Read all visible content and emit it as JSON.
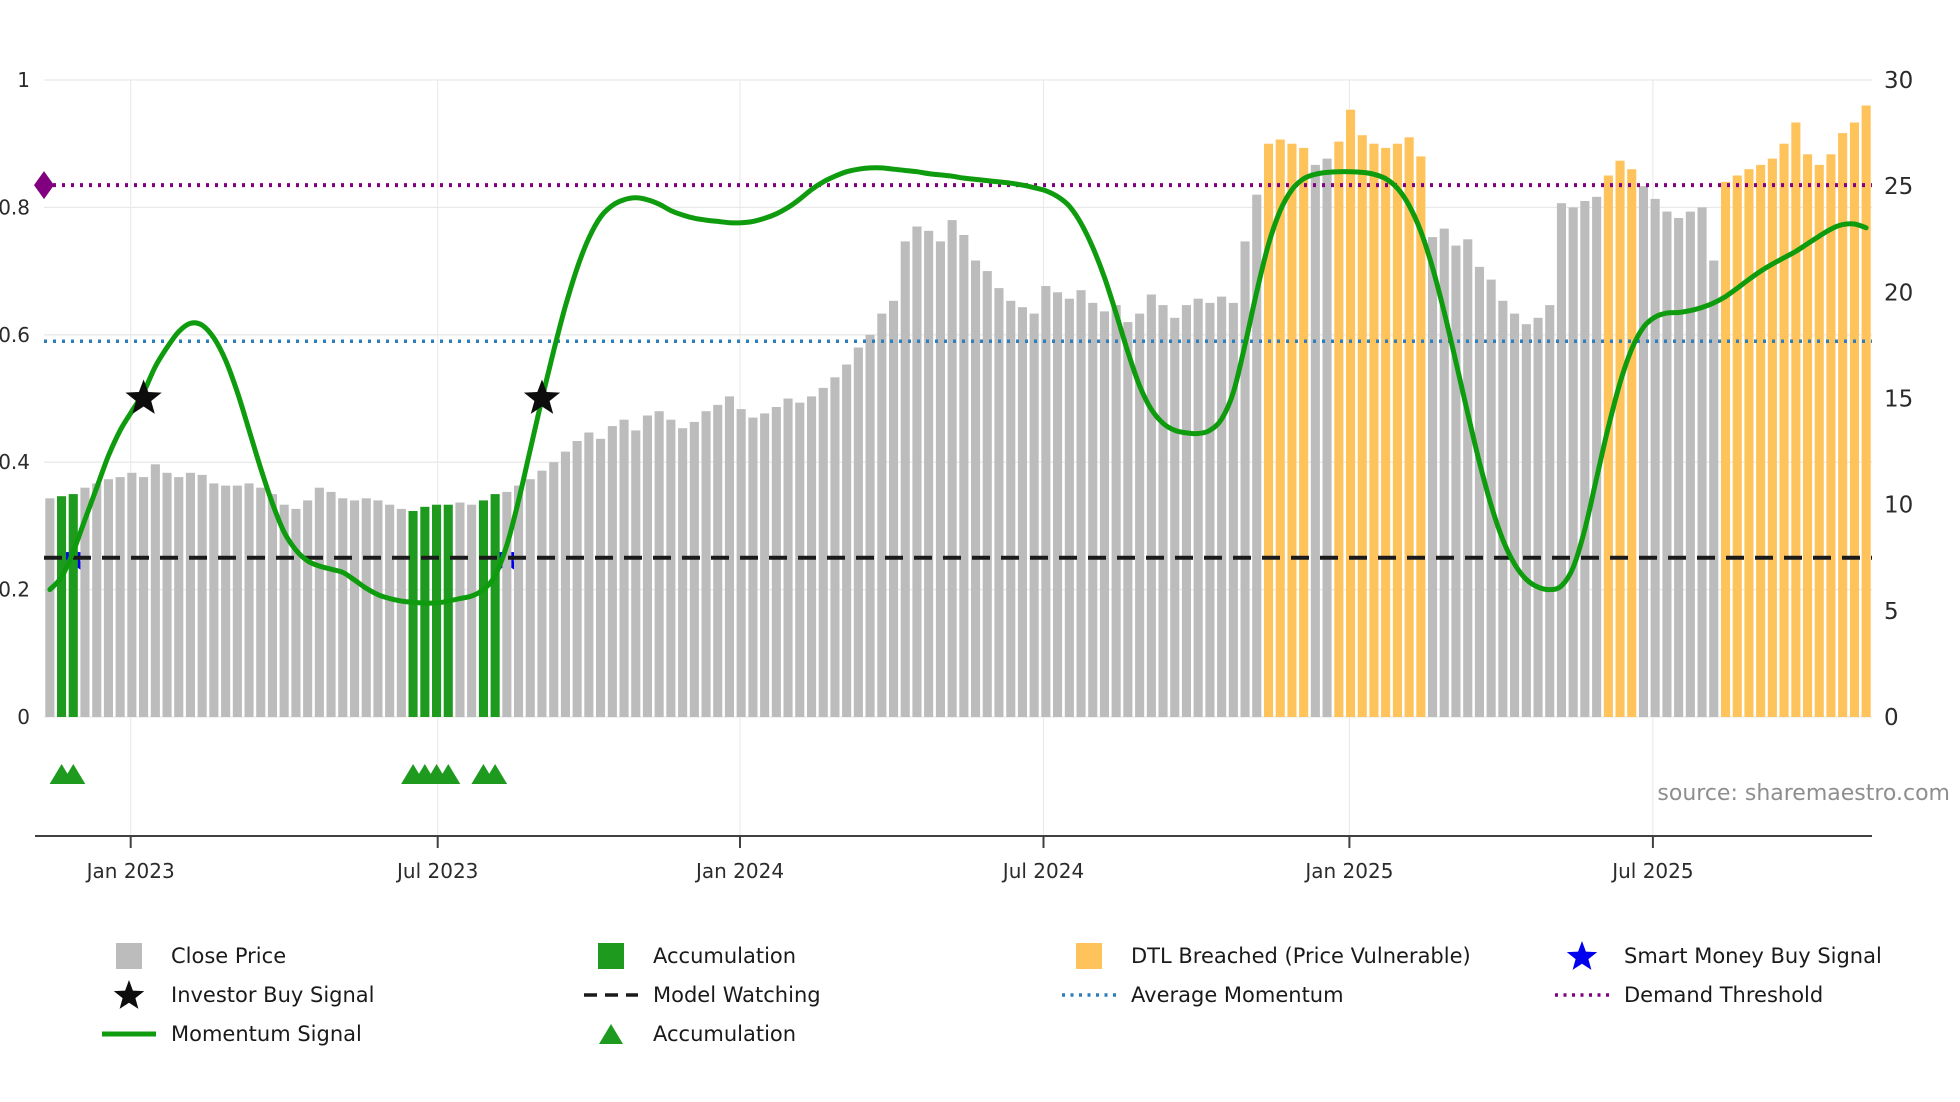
{
  "source_text": "source: sharemaestro.com",
  "colors": {
    "close": "#bcbcbc",
    "accum": "#1e9b1e",
    "dtl": "#ffc35c",
    "momentum": "#0e9c0e",
    "avg_momentum": "#2e7ebc",
    "demand": "#800080",
    "model_watching": "#1a1a1a",
    "investor_star": "#0d0d0d",
    "smart_star": "#0000ee",
    "grid": "#e9e9e9",
    "axis_text": "#2b2b2b",
    "spine": "#404040",
    "source": "#8e8e8e"
  },
  "chart_data": {
    "type": "bar+line",
    "title": "",
    "xlabel": "",
    "ylabel_left": "",
    "ylabel_right": "",
    "left_axis": {
      "max": 1,
      "ticks": [
        {
          "label": "0",
          "value": 0
        },
        {
          "label": "0.2",
          "value": 0.2
        },
        {
          "label": "0.4",
          "value": 0.4
        },
        {
          "label": "0.6",
          "value": 0.6
        },
        {
          "label": "0.8",
          "value": 0.8
        },
        {
          "label": "1",
          "value": 1
        }
      ]
    },
    "right_axis": {
      "max": 30,
      "ticks": [
        {
          "label": "0",
          "value": 0
        },
        {
          "label": "5",
          "value": 5
        },
        {
          "label": "10",
          "value": 10
        },
        {
          "label": "15",
          "value": 15
        },
        {
          "label": "20",
          "value": 20
        },
        {
          "label": "25",
          "value": 25
        },
        {
          "label": "30",
          "value": 30
        }
      ]
    },
    "x_ticks": [
      {
        "label": "Jan 2023",
        "pos": 6.9
      },
      {
        "label": "Jul 2023",
        "pos": 33.1
      },
      {
        "label": "Jan 2024",
        "pos": 58.9
      },
      {
        "label": "Jul 2024",
        "pos": 84.8
      },
      {
        "label": "Jan 2025",
        "pos": 110.9
      },
      {
        "label": "Jul 2025",
        "pos": 136.8
      }
    ],
    "bars": {
      "name": "Close Price (weekly, right axis)",
      "values": [
        10.3,
        10.4,
        10.5,
        10.8,
        11.0,
        11.2,
        11.3,
        11.5,
        11.3,
        11.9,
        11.5,
        11.3,
        11.5,
        11.4,
        11.0,
        10.9,
        10.9,
        11.0,
        10.8,
        10.5,
        10.0,
        9.8,
        10.2,
        10.8,
        10.6,
        10.3,
        10.2,
        10.3,
        10.2,
        10.0,
        9.8,
        9.7,
        9.9,
        10.0,
        10.0,
        10.1,
        10.0,
        10.2,
        10.5,
        10.6,
        10.9,
        11.2,
        11.6,
        12.0,
        12.5,
        13.0,
        13.4,
        13.1,
        13.7,
        14.0,
        13.5,
        14.2,
        14.4,
        14.0,
        13.6,
        13.9,
        14.4,
        14.7,
        15.1,
        14.5,
        14.1,
        14.3,
        14.6,
        15.0,
        14.8,
        15.1,
        15.5,
        16.0,
        16.6,
        17.4,
        18.0,
        19.0,
        19.6,
        22.4,
        23.1,
        22.9,
        22.4,
        23.4,
        22.7,
        21.5,
        21.0,
        20.2,
        19.6,
        19.3,
        19.0,
        20.3,
        20.0,
        19.7,
        20.1,
        19.5,
        19.1,
        19.4,
        18.6,
        19.0,
        19.9,
        19.4,
        18.8,
        19.4,
        19.7,
        19.5,
        19.8,
        19.5,
        22.4,
        24.6,
        27.0,
        27.2,
        27.0,
        26.8,
        26.0,
        26.3,
        27.1,
        28.6,
        27.4,
        27.0,
        26.8,
        27.0,
        27.3,
        26.4,
        22.6,
        23.0,
        22.2,
        22.5,
        21.2,
        20.6,
        19.6,
        19.0,
        18.5,
        18.8,
        19.4,
        24.2,
        24.0,
        24.3,
        24.5,
        25.5,
        26.2,
        25.8,
        25.0,
        24.4,
        23.8,
        23.5,
        23.8,
        24.0,
        21.5,
        25.2,
        25.5,
        25.8,
        26.0,
        26.3,
        27.0,
        28.0,
        26.5,
        26.0,
        26.5,
        27.5,
        28.0,
        28.8
      ],
      "color_runs": [
        [
          "g",
          1
        ],
        [
          "a",
          2
        ],
        [
          "g",
          28
        ],
        [
          "a",
          4
        ],
        [
          "g",
          2
        ],
        [
          "a",
          2
        ],
        [
          "g",
          65
        ],
        [
          "d",
          4
        ],
        [
          "g",
          2
        ],
        [
          "d",
          8
        ],
        [
          "g",
          15
        ],
        [
          "d",
          3
        ],
        [
          "g",
          7
        ],
        [
          "d",
          13
        ]
      ],
      "color_legend": {
        "g": "Close Price",
        "a": "Accumulation",
        "d": "DTL Breached (Price Vulnerable)"
      }
    },
    "momentum_signal": {
      "name": "Momentum Signal (left axis)",
      "values": [
        0.2,
        0.22,
        0.26,
        0.31,
        0.36,
        0.41,
        0.45,
        0.48,
        0.51,
        0.55,
        0.58,
        0.605,
        0.618,
        0.615,
        0.595,
        0.56,
        0.51,
        0.45,
        0.39,
        0.335,
        0.29,
        0.262,
        0.245,
        0.237,
        0.232,
        0.227,
        0.215,
        0.202,
        0.192,
        0.186,
        0.182,
        0.18,
        0.179,
        0.179,
        0.182,
        0.186,
        0.19,
        0.2,
        0.222,
        0.27,
        0.34,
        0.42,
        0.5,
        0.575,
        0.645,
        0.705,
        0.752,
        0.785,
        0.803,
        0.812,
        0.815,
        0.812,
        0.805,
        0.795,
        0.788,
        0.783,
        0.78,
        0.778,
        0.776,
        0.776,
        0.778,
        0.783,
        0.79,
        0.8,
        0.813,
        0.828,
        0.84,
        0.849,
        0.856,
        0.86,
        0.862,
        0.862,
        0.86,
        0.858,
        0.856,
        0.853,
        0.851,
        0.849,
        0.846,
        0.844,
        0.842,
        0.84,
        0.838,
        0.835,
        0.831,
        0.826,
        0.817,
        0.802,
        0.775,
        0.737,
        0.69,
        0.633,
        0.573,
        0.52,
        0.483,
        0.461,
        0.45,
        0.446,
        0.445,
        0.45,
        0.468,
        0.51,
        0.585,
        0.668,
        0.742,
        0.795,
        0.828,
        0.845,
        0.852,
        0.855,
        0.856,
        0.856,
        0.855,
        0.852,
        0.845,
        0.83,
        0.803,
        0.762,
        0.705,
        0.635,
        0.557,
        0.477,
        0.4,
        0.332,
        0.278,
        0.24,
        0.216,
        0.204,
        0.2,
        0.206,
        0.235,
        0.295,
        0.375,
        0.455,
        0.525,
        0.578,
        0.612,
        0.628,
        0.634,
        0.635,
        0.638,
        0.643,
        0.65,
        0.66,
        0.673,
        0.687,
        0.7,
        0.711,
        0.721,
        0.731,
        0.743,
        0.755,
        0.766,
        0.773,
        0.774,
        0.768
      ]
    },
    "reference_lines": {
      "demand_threshold": 0.835,
      "average_momentum": 0.59,
      "model_watching": 0.25
    },
    "markers": {
      "investor_buy_signals": [
        {
          "index": 8,
          "value": 0.5
        },
        {
          "index": 42,
          "value": 0.5
        }
      ],
      "smart_money_buy_signals": [
        {
          "index": 2,
          "value": 0.25
        },
        {
          "index": 39,
          "value": 0.25
        }
      ],
      "accumulation_marker_indices": [
        1,
        2,
        31,
        32,
        33,
        34,
        37,
        38
      ],
      "demand_threshold_marker": {
        "value": 0.835
      }
    }
  },
  "legend": {
    "columns": [
      {
        "items": [
          {
            "type": "square",
            "color": "close",
            "label": "Close Price"
          },
          {
            "type": "star",
            "color": "investor_star",
            "label": "Investor Buy Signal"
          },
          {
            "type": "line",
            "color": "momentum",
            "label": "Momentum Signal"
          }
        ]
      },
      {
        "items": [
          {
            "type": "square",
            "color": "accum",
            "label": "Accumulation"
          },
          {
            "type": "dashed",
            "color": "model_watching",
            "label": "Model Watching"
          },
          {
            "type": "triangle",
            "color": "accum",
            "label": "Accumulation"
          }
        ]
      },
      {
        "items": [
          {
            "type": "square",
            "color": "dtl",
            "label": "DTL Breached (Price Vulnerable)"
          },
          {
            "type": "dotted",
            "color": "avg_momentum",
            "label": "Average Momentum"
          }
        ]
      },
      {
        "items": [
          {
            "type": "star",
            "color": "smart_star",
            "label": "Smart Money Buy Signal"
          },
          {
            "type": "dotted",
            "color": "demand",
            "label": "Demand Threshold"
          }
        ]
      }
    ]
  }
}
